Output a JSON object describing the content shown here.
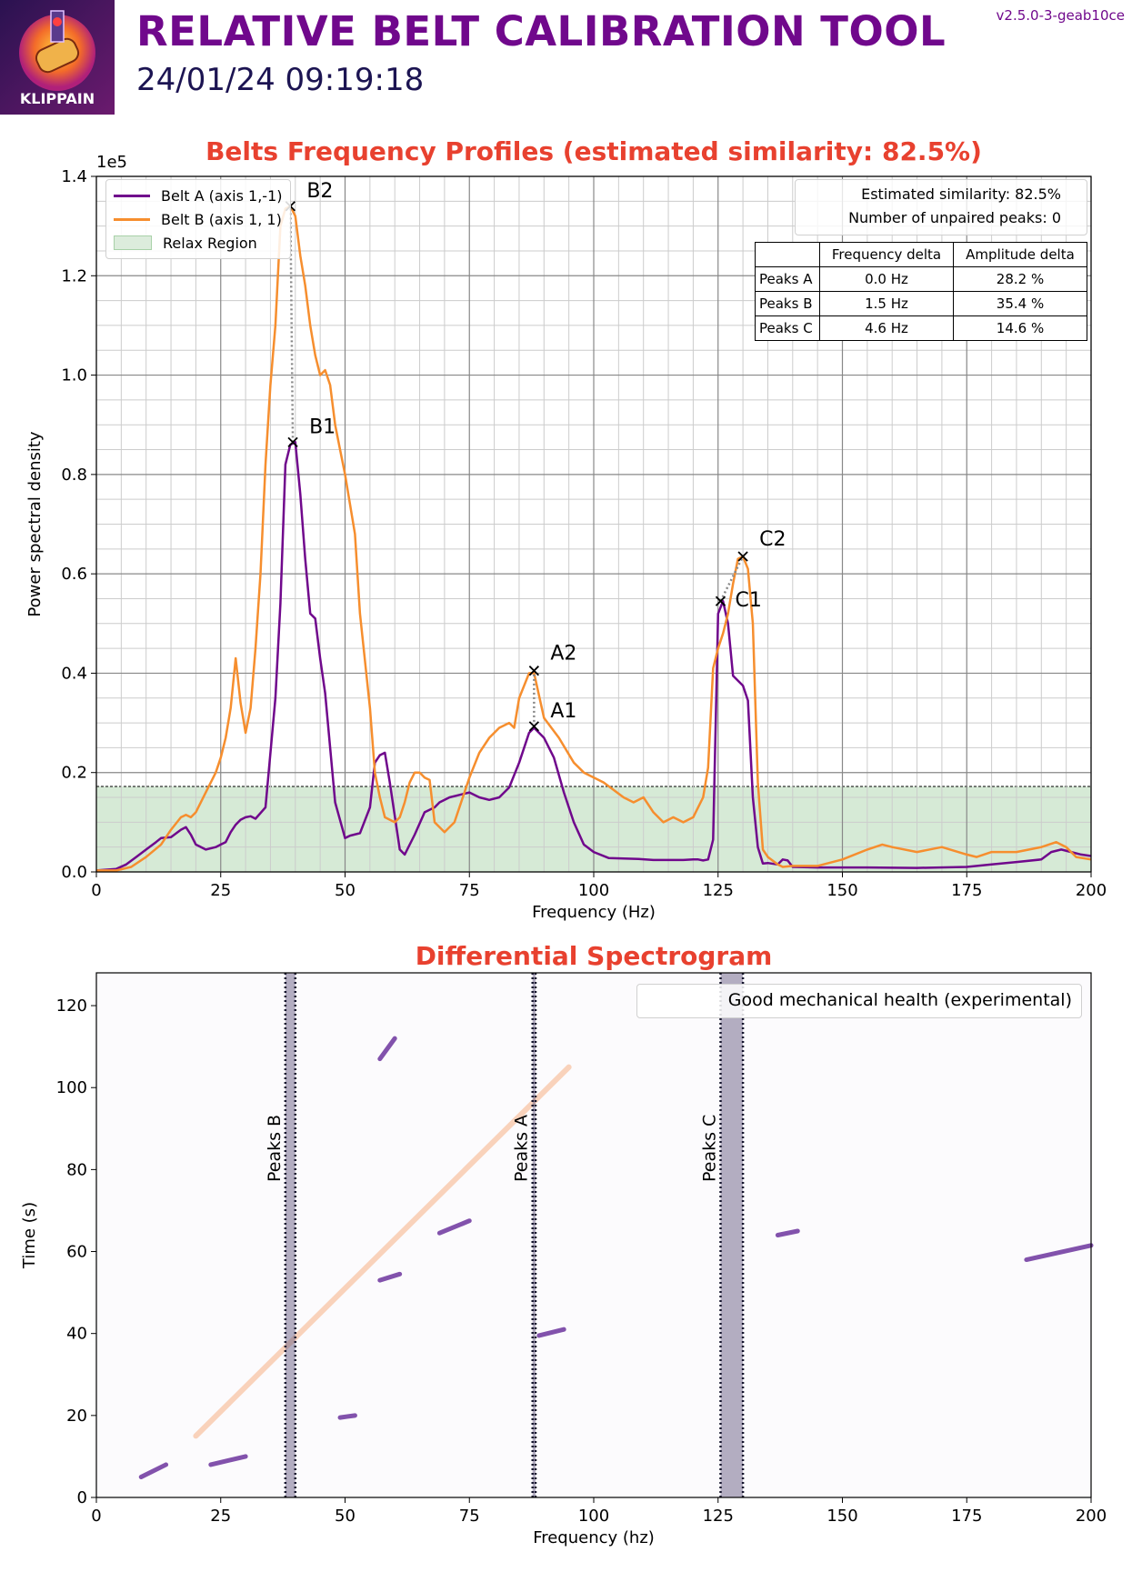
{
  "header": {
    "title": "RELATIVE BELT CALIBRATION TOOL",
    "datetime": "24/01/24 09:19:18",
    "version": "v2.5.0-3-geab10ce",
    "logo_text": "KLIPPAIN"
  },
  "colors": {
    "belt_a": "#70088c",
    "belt_b": "#f68e2e",
    "title_red": "#e8412f",
    "relax_fill": "#d6ead6",
    "peak_band": "#6a5f85"
  },
  "chart_data": [
    {
      "type": "line",
      "title": "Belts Frequency Profiles (estimated similarity: 82.5%)",
      "xlabel": "Frequency (Hz)",
      "ylabel": "Power spectral density",
      "y_offset_label": "1e5",
      "xlim": [
        0,
        200
      ],
      "ylim": [
        0,
        1.4
      ],
      "x_ticks": [
        "0",
        "25",
        "50",
        "75",
        "100",
        "125",
        "150",
        "175",
        "200"
      ],
      "y_ticks": [
        "0.0",
        "0.2",
        "0.4",
        "0.6",
        "0.8",
        "1.0",
        "1.2",
        "1.4"
      ],
      "grid": true,
      "legend": {
        "placement": "top-left",
        "entries": [
          "Belt A (axis 1,-1)",
          "Belt B (axis 1, 1)",
          "Relax Region"
        ]
      },
      "relax_region_threshold": 0.172,
      "series": [
        {
          "name": "Belt A (axis 1,-1)",
          "x": [
            0,
            4,
            6,
            8,
            10,
            12,
            13,
            15,
            17,
            18,
            19,
            20,
            22,
            24,
            25,
            26,
            27,
            28,
            29,
            30,
            31,
            32,
            34,
            36,
            37,
            38,
            39,
            40,
            41,
            42,
            43,
            44,
            45,
            46,
            48,
            50,
            51,
            53,
            55,
            56,
            57,
            58,
            59,
            61,
            62,
            64,
            66,
            68,
            69,
            71,
            73,
            75,
            77,
            79,
            81,
            83,
            85,
            87,
            88,
            90,
            92,
            94,
            96,
            98,
            100,
            103,
            106,
            109,
            112,
            115,
            118,
            120,
            121,
            122,
            123,
            124,
            125,
            126,
            127,
            128,
            129,
            130,
            131,
            132,
            133,
            134,
            135,
            137,
            138,
            139,
            140,
            145,
            155,
            165,
            175,
            180,
            185,
            190,
            192,
            194,
            196,
            198,
            200
          ],
          "y": [
            0.003,
            0.006,
            0.015,
            0.03,
            0.045,
            0.06,
            0.068,
            0.07,
            0.085,
            0.09,
            0.075,
            0.055,
            0.045,
            0.05,
            0.055,
            0.06,
            0.08,
            0.095,
            0.105,
            0.11,
            0.112,
            0.107,
            0.13,
            0.35,
            0.54,
            0.82,
            0.86,
            0.865,
            0.76,
            0.63,
            0.52,
            0.51,
            0.43,
            0.36,
            0.14,
            0.068,
            0.073,
            0.078,
            0.13,
            0.22,
            0.235,
            0.24,
            0.18,
            0.045,
            0.035,
            0.075,
            0.12,
            0.13,
            0.14,
            0.15,
            0.155,
            0.16,
            0.15,
            0.145,
            0.15,
            0.17,
            0.22,
            0.28,
            0.29,
            0.27,
            0.23,
            0.16,
            0.1,
            0.055,
            0.04,
            0.028,
            0.027,
            0.026,
            0.024,
            0.024,
            0.024,
            0.025,
            0.025,
            0.023,
            0.025,
            0.065,
            0.52,
            0.545,
            0.5,
            0.395,
            0.385,
            0.375,
            0.345,
            0.15,
            0.05,
            0.017,
            0.018,
            0.015,
            0.025,
            0.023,
            0.01,
            0.009,
            0.009,
            0.008,
            0.01,
            0.015,
            0.02,
            0.025,
            0.04,
            0.045,
            0.04,
            0.035,
            0.032
          ]
        },
        {
          "name": "Belt B (axis 1, 1)",
          "x": [
            0,
            4,
            7,
            10,
            13,
            15,
            17,
            18,
            19,
            20,
            22,
            24,
            25,
            26,
            27,
            28,
            29,
            30,
            31,
            32,
            33,
            34,
            35,
            36,
            37,
            38,
            39,
            40,
            41,
            42,
            43,
            44,
            45,
            46,
            47,
            48,
            49,
            50,
            52,
            53,
            55,
            56,
            57,
            58,
            59,
            60,
            61,
            62,
            63,
            64,
            65,
            66,
            67,
            68,
            70,
            72,
            74,
            75,
            77,
            79,
            81,
            83,
            84,
            85,
            87,
            88,
            90,
            93,
            96,
            98,
            102,
            106,
            108,
            110,
            112,
            114,
            116,
            118,
            120,
            122,
            123,
            124,
            125,
            126,
            127,
            128,
            129,
            130,
            131,
            132,
            133,
            134,
            135,
            137,
            138,
            140,
            145,
            150,
            155,
            158,
            160,
            165,
            170,
            175,
            177,
            180,
            185,
            190,
            193,
            195,
            197,
            200
          ],
          "y": [
            0.003,
            0.003,
            0.01,
            0.03,
            0.055,
            0.085,
            0.11,
            0.115,
            0.11,
            0.12,
            0.16,
            0.2,
            0.23,
            0.27,
            0.33,
            0.43,
            0.34,
            0.28,
            0.33,
            0.45,
            0.6,
            0.82,
            0.98,
            1.1,
            1.3,
            1.335,
            1.34,
            1.32,
            1.24,
            1.18,
            1.1,
            1.04,
            1.0,
            1.01,
            0.98,
            0.9,
            0.85,
            0.8,
            0.68,
            0.52,
            0.33,
            0.2,
            0.15,
            0.11,
            0.105,
            0.1,
            0.11,
            0.14,
            0.18,
            0.2,
            0.2,
            0.19,
            0.185,
            0.1,
            0.08,
            0.1,
            0.16,
            0.19,
            0.24,
            0.27,
            0.29,
            0.3,
            0.29,
            0.35,
            0.4,
            0.4,
            0.31,
            0.27,
            0.22,
            0.2,
            0.18,
            0.15,
            0.14,
            0.15,
            0.12,
            0.1,
            0.11,
            0.1,
            0.11,
            0.15,
            0.21,
            0.41,
            0.45,
            0.48,
            0.52,
            0.58,
            0.63,
            0.635,
            0.61,
            0.5,
            0.18,
            0.045,
            0.03,
            0.015,
            0.01,
            0.012,
            0.012,
            0.025,
            0.045,
            0.055,
            0.05,
            0.04,
            0.05,
            0.035,
            0.03,
            0.04,
            0.04,
            0.05,
            0.06,
            0.05,
            0.03,
            0.025
          ]
        }
      ],
      "peaks": [
        {
          "label": "A1",
          "x": 88,
          "y": 0.293
        },
        {
          "label": "A2",
          "x": 88,
          "y": 0.405
        },
        {
          "label": "B1",
          "x": 39.5,
          "y": 0.865
        },
        {
          "label": "B2",
          "x": 39,
          "y": 1.34
        },
        {
          "label": "C1",
          "x": 125.5,
          "y": 0.545
        },
        {
          "label": "C2",
          "x": 130,
          "y": 0.635
        }
      ],
      "similarity_box": {
        "line1": "Estimated similarity: 82.5%",
        "line2": "Number of unpaired peaks: 0"
      },
      "peaks_table": {
        "headers": [
          "",
          "Frequency delta",
          "Amplitude delta"
        ],
        "rows": [
          [
            "Peaks A",
            "0.0 Hz",
            "28.2 %"
          ],
          [
            "Peaks B",
            "1.5 Hz",
            "35.4 %"
          ],
          [
            "Peaks C",
            "4.6 Hz",
            "14.6 %"
          ]
        ]
      }
    },
    {
      "type": "heatmap",
      "title": "Differential Spectrogram",
      "xlabel": "Frequency (hz)",
      "ylabel": "Time (s)",
      "xlim": [
        0,
        200
      ],
      "ylim": [
        0,
        128
      ],
      "x_ticks": [
        "0",
        "25",
        "50",
        "75",
        "100",
        "125",
        "150",
        "175",
        "200"
      ],
      "y_ticks": [
        "0",
        "20",
        "40",
        "60",
        "80",
        "100",
        "120"
      ],
      "legend": {
        "placement": "top-right",
        "entries": [
          "Good mechanical health (experimental)"
        ]
      },
      "peak_bands": [
        {
          "label": "Peaks B",
          "x0": 38,
          "x1": 40
        },
        {
          "label": "Peaks A",
          "x0": 87.7,
          "x1": 88.3
        },
        {
          "label": "Peaks C",
          "x0": 125.5,
          "x1": 130
        }
      ],
      "orange_streaks": [
        {
          "x0": 20,
          "y0": 15,
          "x1": 95,
          "y1": 105
        }
      ],
      "purple_streaks": [
        {
          "x0": 9,
          "y0": 5,
          "x1": 14,
          "y1": 8
        },
        {
          "x0": 23,
          "y0": 8,
          "x1": 30,
          "y1": 10
        },
        {
          "x0": 49,
          "y0": 19.5,
          "x1": 52,
          "y1": 20
        },
        {
          "x0": 57,
          "y0": 53,
          "x1": 61,
          "y1": 54.5
        },
        {
          "x0": 69,
          "y0": 64.5,
          "x1": 75,
          "y1": 67.5
        },
        {
          "x0": 57,
          "y0": 107,
          "x1": 60,
          "y1": 112
        },
        {
          "x0": 89,
          "y0": 39.5,
          "x1": 94,
          "y1": 41
        },
        {
          "x0": 137,
          "y0": 64,
          "x1": 141,
          "y1": 65
        },
        {
          "x0": 187,
          "y0": 58,
          "x1": 200,
          "y1": 61.5
        }
      ]
    }
  ]
}
